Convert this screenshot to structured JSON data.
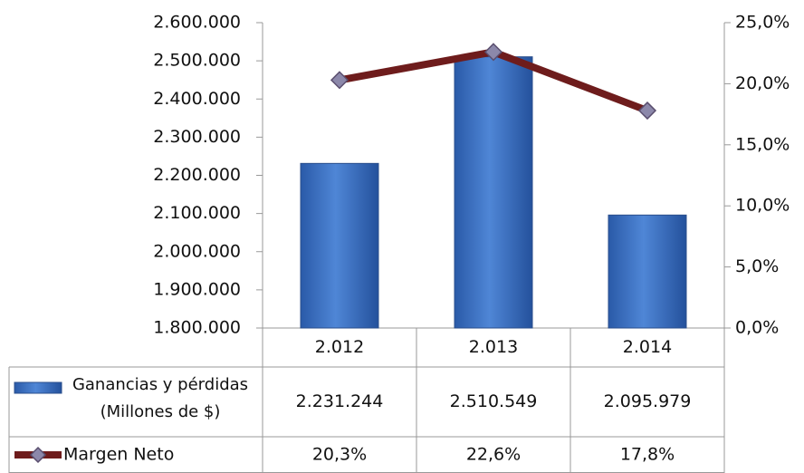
{
  "chart_data": {
    "type": "bar_line_table",
    "categories": [
      "2.012",
      "2.013",
      "2.014"
    ],
    "series": [
      {
        "name": "Ganancias y pérdidas (Millones de $)",
        "color": "#3b6ec2",
        "type": "bar",
        "values": [
          2231244,
          2510549,
          2095979
        ],
        "value_labels": [
          "2.231.244",
          "2.510.549",
          "2.095.979"
        ]
      },
      {
        "name": "Margen Neto",
        "color": "#6e1c1c",
        "type": "line",
        "axis": "y2",
        "marker_color": "#8c88aa",
        "values": [
          20.3,
          22.6,
          17.8
        ],
        "value_labels": [
          "20,3%",
          "22,6%",
          "17,8%"
        ]
      }
    ],
    "ylim": [
      1800000,
      2600000
    ],
    "yticks": [
      {
        "value": 1800000,
        "label": "1.800.000"
      },
      {
        "value": 1900000,
        "label": "1.900.000"
      },
      {
        "value": 2000000,
        "label": "2.000.000"
      },
      {
        "value": 2100000,
        "label": "2.100.000"
      },
      {
        "value": 2200000,
        "label": "2.200.000"
      },
      {
        "value": 2300000,
        "label": "2.300.000"
      },
      {
        "value": 2400000,
        "label": "2.400.000"
      },
      {
        "value": 2500000,
        "label": "2.500.000"
      },
      {
        "value": 2600000,
        "label": "2.600.000"
      }
    ],
    "y2lim": [
      0,
      25
    ],
    "y2ticks": [
      {
        "value": 0,
        "label": "0,0%"
      },
      {
        "value": 5,
        "label": "5,0%"
      },
      {
        "value": 10,
        "label": "10,0%"
      },
      {
        "value": 15,
        "label": "15,0%"
      },
      {
        "value": 20,
        "label": "20,0%"
      },
      {
        "value": 25,
        "label": "25,0%"
      }
    ]
  }
}
